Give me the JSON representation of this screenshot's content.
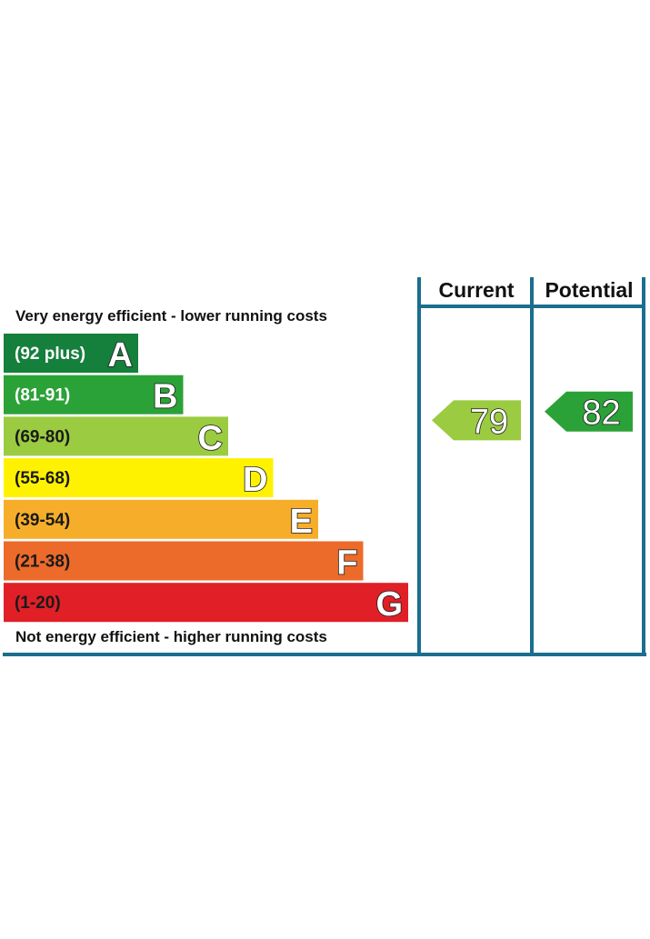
{
  "chart_data": {
    "type": "bar",
    "top_caption": "Very energy efficient - lower running costs",
    "bottom_caption": "Not energy efficient - higher running costs",
    "columns": [
      "Current",
      "Potential"
    ],
    "bands": [
      {
        "letter": "A",
        "range": "(92 plus)",
        "color": "#157f3c",
        "text_color": "#ffffff"
      },
      {
        "letter": "B",
        "range": "(81-91)",
        "color": "#2ba237",
        "text_color": "#ffffff"
      },
      {
        "letter": "C",
        "range": "(69-80)",
        "color": "#9bcb40",
        "text_color": "#1a1a1a"
      },
      {
        "letter": "D",
        "range": "(55-68)",
        "color": "#fff200",
        "text_color": "#1a1a1a"
      },
      {
        "letter": "E",
        "range": "(39-54)",
        "color": "#f6ae2a",
        "text_color": "#1a1a1a"
      },
      {
        "letter": "F",
        "range": "(21-38)",
        "color": "#ec6a2a",
        "text_color": "#1a1a1a"
      },
      {
        "letter": "G",
        "range": "(1-20)",
        "color": "#e01f27",
        "text_color": "#1a1a1a"
      }
    ],
    "current": {
      "value": 79,
      "band": "C",
      "color": "#9bcb40"
    },
    "potential": {
      "value": 82,
      "band": "B",
      "color": "#2ba237"
    },
    "frame_color": "#1b6e8e"
  }
}
